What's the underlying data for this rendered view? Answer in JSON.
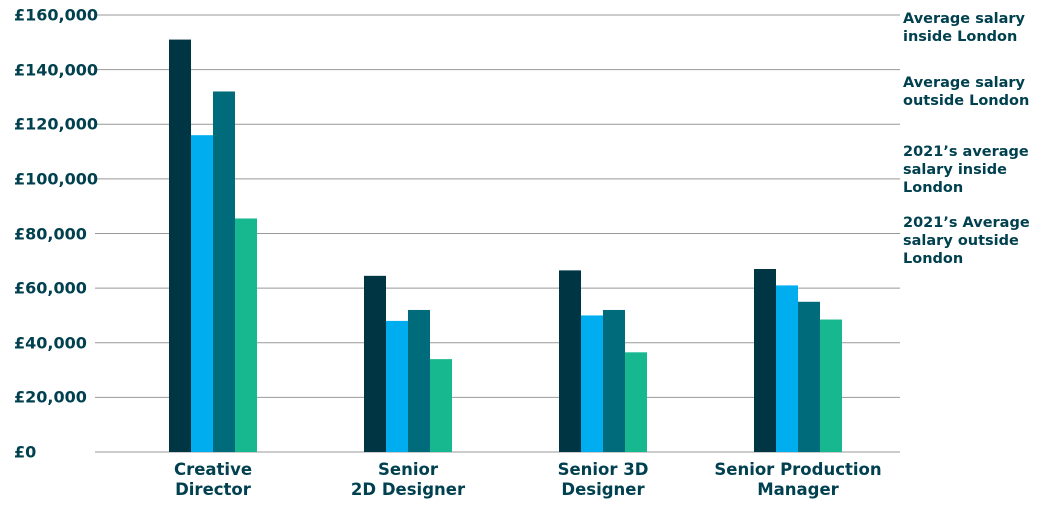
{
  "chart_data": {
    "type": "bar",
    "categories": [
      "Creative\nDirector",
      "Senior\n2D Designer",
      "Senior 3D\nDesigner",
      "Senior Production\nManager"
    ],
    "series": [
      {
        "name": "Average salary\ninside London",
        "color": "#003643",
        "values": [
          151000,
          64500,
          66500,
          67000
        ]
      },
      {
        "name": "Average salary\noutside London",
        "color": "#00aeef",
        "values": [
          116000,
          48000,
          50000,
          61000
        ]
      },
      {
        "name": "2021’s average\nsalary inside\nLondon",
        "color": "#006b7a",
        "values": [
          132000,
          52000,
          52000,
          55000
        ]
      },
      {
        "name": "2021’s Average\nsalary outside\nLondon",
        "color": "#17b890",
        "values": [
          85500,
          34000,
          36500,
          48500
        ]
      }
    ],
    "ylim": [
      0,
      160000
    ],
    "yticks": [
      {
        "value": 0,
        "label": "£0"
      },
      {
        "value": 20000,
        "label": "£20,000"
      },
      {
        "value": 40000,
        "label": "£40,000"
      },
      {
        "value": 60000,
        "label": "£60,000"
      },
      {
        "value": 80000,
        "label": "£80,000"
      },
      {
        "value": 100000,
        "label": "£100,000"
      },
      {
        "value": 120000,
        "label": "£120,000"
      },
      {
        "value": 140000,
        "label": "£140,000"
      },
      {
        "value": 160000,
        "label": "£160,000"
      }
    ],
    "grid": true
  }
}
